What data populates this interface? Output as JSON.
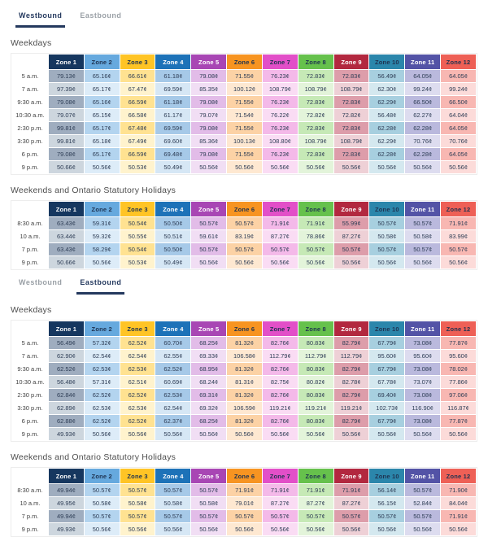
{
  "accent": {
    "tab_active_color": "#24395e",
    "tab_inactive_color": "#9aa0a6",
    "tab_underline_color": "#24395e",
    "heading_color": "#4d4d4d",
    "cell_text_color": "#2e3d55",
    "currency_symbol": "¢"
  },
  "zones": [
    {
      "label": "Zone 1",
      "header_bg": "#16375f",
      "header_text": "#ffffff",
      "cell_odd": "#9fadbf",
      "cell_even": "#cdd6de"
    },
    {
      "label": "Zone 2",
      "header_bg": "#66a9de",
      "header_text": "#1e3250",
      "cell_odd": "#b3d4ef",
      "cell_even": "#ddecf8"
    },
    {
      "label": "Zone 3",
      "header_bg": "#ffc425",
      "header_text": "#1e3250",
      "cell_odd": "#ffe291",
      "cell_even": "#fff3cd"
    },
    {
      "label": "Zone 4",
      "header_bg": "#1d72b8",
      "header_text": "#ffffff",
      "cell_odd": "#a6c9e8",
      "cell_even": "#d6e7f5"
    },
    {
      "label": "Zone 5",
      "header_bg": "#a846b4",
      "header_text": "#ffffff",
      "cell_odd": "#e2bce8",
      "cell_even": "#f1def4"
    },
    {
      "label": "Zone 6",
      "header_bg": "#f79421",
      "header_text": "#1e3250",
      "cell_odd": "#fcd2a5",
      "cell_even": "#fee8d1"
    },
    {
      "label": "Zone 7",
      "header_bg": "#e24fc8",
      "header_text": "#1e3250",
      "cell_odd": "#f4b9e9",
      "cell_even": "#fadcf4"
    },
    {
      "label": "Zone 8",
      "header_bg": "#66c14c",
      "header_text": "#1e3250",
      "cell_odd": "#c6e9b6",
      "cell_even": "#e3f4da"
    },
    {
      "label": "Zone 9",
      "header_bg": "#b2283f",
      "header_text": "#ffffff",
      "cell_odd": "#dd9daa",
      "cell_even": "#eed0d6"
    },
    {
      "label": "Zone 10",
      "header_bg": "#2b86ab",
      "header_text": "#1e3250",
      "cell_odd": "#a7cfdf",
      "cell_even": "#d4e8ef"
    },
    {
      "label": "Zone 11",
      "header_bg": "#5353a6",
      "header_text": "#ffffff",
      "cell_odd": "#bab9dd",
      "cell_even": "#dddcef"
    },
    {
      "label": "Zone 12",
      "header_bg": "#ee6056",
      "header_text": "#1e3250",
      "cell_odd": "#f8b7b2",
      "cell_even": "#fcdbd9"
    }
  ],
  "sections": [
    {
      "name": "westbound",
      "tabs": [
        {
          "label": "Westbound",
          "active": true
        },
        {
          "label": "Eastbound",
          "active": false
        }
      ],
      "tables": [
        {
          "title": "Weekdays",
          "rows": [
            {
              "time": "5 a.m.",
              "fares": [
                "79.13¢",
                "65.16¢",
                "66.61¢",
                "61.18¢",
                "79.08¢",
                "71.55¢",
                "76.23¢",
                "72.83¢",
                "72.83¢",
                "56.49¢",
                "64.05¢",
                "64.05¢"
              ]
            },
            {
              "time": "7 a.m.",
              "fares": [
                "97.39¢",
                "65.17¢",
                "67.47¢",
                "69.59¢",
                "85.35¢",
                "100.12¢",
                "108.79¢",
                "108.79¢",
                "108.79¢",
                "62.30¢",
                "99.24¢",
                "99.24¢"
              ]
            },
            {
              "time": "9:30 a.m.",
              "fares": [
                "79.08¢",
                "65.16¢",
                "66.59¢",
                "61.18¢",
                "79.08¢",
                "71.55¢",
                "76.23¢",
                "72.83¢",
                "72.83¢",
                "62.29¢",
                "66.50¢",
                "66.50¢"
              ]
            },
            {
              "time": "10:30 a.m.",
              "fares": [
                "79.07¢",
                "65.15¢",
                "66.58¢",
                "61.17¢",
                "79.07¢",
                "71.54¢",
                "76.22¢",
                "72.82¢",
                "72.82¢",
                "56.48¢",
                "62.27¢",
                "64.04¢"
              ]
            },
            {
              "time": "2:30 p.m.",
              "fares": [
                "99.81¢",
                "65.17¢",
                "67.48¢",
                "69.59¢",
                "79.08¢",
                "71.55¢",
                "76.23¢",
                "72.83¢",
                "72.83¢",
                "62.28¢",
                "62.28¢",
                "64.05¢"
              ]
            },
            {
              "time": "3:30 p.m.",
              "fares": [
                "99.81¢",
                "65.18¢",
                "67.49¢",
                "69.60¢",
                "85.36¢",
                "100.13¢",
                "108.80¢",
                "108.79¢",
                "108.79¢",
                "62.29¢",
                "70.76¢",
                "70.76¢"
              ]
            },
            {
              "time": "6 p.m.",
              "fares": [
                "79.08¢",
                "65.17¢",
                "66.59¢",
                "69.48¢",
                "79.08¢",
                "71.55¢",
                "76.23¢",
                "72.83¢",
                "72.83¢",
                "62.28¢",
                "62.28¢",
                "64.05¢"
              ]
            },
            {
              "time": "9 p.m.",
              "fares": [
                "50.66¢",
                "50.56¢",
                "50.53¢",
                "50.49¢",
                "50.56¢",
                "50.56¢",
                "50.56¢",
                "50.56¢",
                "50.56¢",
                "50.56¢",
                "50.56¢",
                "50.56¢"
              ]
            }
          ]
        },
        {
          "title": "Weekends and Ontario Statutory Holidays",
          "rows": [
            {
              "time": "8:30 a.m.",
              "fares": [
                "63.43¢",
                "59.31¢",
                "50.54¢",
                "50.50¢",
                "50.57¢",
                "50.57¢",
                "71.91¢",
                "71.91¢",
                "55.99¢",
                "50.57¢",
                "50.57¢",
                "71.91¢"
              ]
            },
            {
              "time": "10 a.m.",
              "fares": [
                "63.44¢",
                "59.32¢",
                "50.55¢",
                "50.51¢",
                "59.61¢",
                "83.19¢",
                "87.27¢",
                "78.86¢",
                "87.27¢",
                "50.58¢",
                "50.58¢",
                "83.99¢"
              ]
            },
            {
              "time": "7 p.m.",
              "fares": [
                "63.43¢",
                "58.29¢",
                "50.54¢",
                "50.50¢",
                "50.57¢",
                "50.57¢",
                "50.57¢",
                "50.57¢",
                "50.57¢",
                "50.57¢",
                "50.57¢",
                "50.57¢"
              ]
            },
            {
              "time": "9 p.m.",
              "fares": [
                "50.66¢",
                "50.56¢",
                "50.53¢",
                "50.49¢",
                "50.56¢",
                "50.56¢",
                "50.56¢",
                "50.56¢",
                "50.56¢",
                "50.56¢",
                "50.56¢",
                "50.56¢"
              ]
            }
          ]
        }
      ]
    },
    {
      "name": "eastbound",
      "tabs": [
        {
          "label": "Westbound",
          "active": false
        },
        {
          "label": "Eastbound",
          "active": true
        }
      ],
      "tables": [
        {
          "title": "Weekdays",
          "rows": [
            {
              "time": "5 a.m.",
              "fares": [
                "56.49¢",
                "57.32¢",
                "62.52¢",
                "60.70¢",
                "68.25¢",
                "81.32¢",
                "82.76¢",
                "80.83¢",
                "82.79¢",
                "67.79¢",
                "73.08¢",
                "77.87¢"
              ]
            },
            {
              "time": "7 a.m.",
              "fares": [
                "62.90¢",
                "62.54¢",
                "62.54¢",
                "62.55¢",
                "69.33¢",
                "106.58¢",
                "112.79¢",
                "112.79¢",
                "112.79¢",
                "95.60¢",
                "95.60¢",
                "95.60¢"
              ]
            },
            {
              "time": "9:30 a.m.",
              "fares": [
                "62.52¢",
                "62.53¢",
                "62.53¢",
                "62.52¢",
                "68.95¢",
                "81.32¢",
                "82.76¢",
                "80.83¢",
                "82.79¢",
                "67.79¢",
                "73.08¢",
                "78.02¢"
              ]
            },
            {
              "time": "10:30 a.m.",
              "fares": [
                "56.48¢",
                "57.31¢",
                "62.51¢",
                "60.69¢",
                "68.24¢",
                "81.31¢",
                "82.75¢",
                "80.82¢",
                "82.78¢",
                "67.78¢",
                "73.07¢",
                "77.86¢"
              ]
            },
            {
              "time": "2:30 p.m.",
              "fares": [
                "62.84¢",
                "62.52¢",
                "62.52¢",
                "62.53¢",
                "69.31¢",
                "81.32¢",
                "82.76¢",
                "80.83¢",
                "82.79¢",
                "69.40¢",
                "73.08¢",
                "97.06¢"
              ]
            },
            {
              "time": "3:30 p.m.",
              "fares": [
                "62.89¢",
                "62.53¢",
                "62.53¢",
                "62.54¢",
                "69.32¢",
                "106.59¢",
                "119.21¢",
                "119.21¢",
                "119.21¢",
                "102.73¢",
                "116.90¢",
                "116.87¢"
              ]
            },
            {
              "time": "6 p.m.",
              "fares": [
                "62.88¢",
                "62.52¢",
                "62.52¢",
                "62.37¢",
                "68.25¢",
                "81.32¢",
                "82.76¢",
                "80.83¢",
                "82.79¢",
                "67.79¢",
                "73.08¢",
                "77.87¢"
              ]
            },
            {
              "time": "9 p.m.",
              "fares": [
                "49.93¢",
                "50.56¢",
                "50.56¢",
                "50.56¢",
                "50.56¢",
                "50.56¢",
                "50.56¢",
                "50.56¢",
                "50.56¢",
                "50.56¢",
                "50.56¢",
                "50.56¢"
              ]
            }
          ]
        },
        {
          "title": "Weekends and Ontario Statutory Holidays",
          "rows": [
            {
              "time": "8:30 a.m.",
              "fares": [
                "49.94¢",
                "50.57¢",
                "50.57¢",
                "50.57¢",
                "50.57¢",
                "71.91¢",
                "71.91¢",
                "71.91¢",
                "71.91¢",
                "56.14¢",
                "50.57¢",
                "71.90¢"
              ]
            },
            {
              "time": "10 a.m.",
              "fares": [
                "49.95¢",
                "50.58¢",
                "50.58¢",
                "50.58¢",
                "50.58¢",
                "79.01¢",
                "87.27¢",
                "87.27¢",
                "87.27¢",
                "56.15¢",
                "52.84¢",
                "84.04¢"
              ]
            },
            {
              "time": "7 p.m.",
              "fares": [
                "49.94¢",
                "50.57¢",
                "50.57¢",
                "50.57¢",
                "50.57¢",
                "50.57¢",
                "50.57¢",
                "50.57¢",
                "50.57¢",
                "50.57¢",
                "50.57¢",
                "71.91¢"
              ]
            },
            {
              "time": "9 p.m.",
              "fares": [
                "49.93¢",
                "50.56¢",
                "50.56¢",
                "50.56¢",
                "50.56¢",
                "50.56¢",
                "50.56¢",
                "50.56¢",
                "50.56¢",
                "50.56¢",
                "50.56¢",
                "50.56¢"
              ]
            }
          ]
        }
      ]
    }
  ]
}
